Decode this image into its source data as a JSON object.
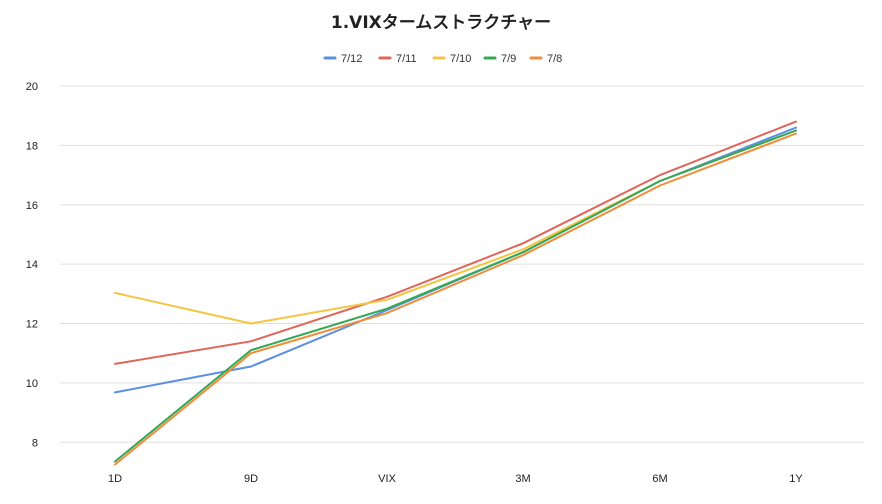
{
  "chart_data": {
    "type": "line",
    "title": "1.VIXタームストラクチャー",
    "xlabel": "",
    "ylabel": "",
    "categories": [
      "1D",
      "9D",
      "VIX",
      "3M",
      "6M",
      "1Y"
    ],
    "ylim": [
      7.2,
      20
    ],
    "yticks": [
      8,
      10,
      12,
      14,
      16,
      18,
      20
    ],
    "grid": true,
    "legend_position": "top",
    "series": [
      {
        "name": "7/12",
        "color": "#5b8fe6",
        "values": [
          9.68,
          10.55,
          12.45,
          14.4,
          16.8,
          18.6
        ]
      },
      {
        "name": "7/11",
        "color": "#e0665a",
        "values": [
          10.64,
          11.4,
          12.9,
          14.7,
          17.0,
          18.8
        ]
      },
      {
        "name": "7/10",
        "color": "#f4c542",
        "values": [
          13.03,
          12.0,
          12.8,
          14.5,
          16.8,
          18.5
        ]
      },
      {
        "name": "7/9",
        "color": "#34a853",
        "values": [
          7.35,
          11.1,
          12.5,
          14.4,
          16.8,
          18.5
        ]
      },
      {
        "name": "7/8",
        "color": "#f08c3a",
        "values": [
          7.25,
          11.0,
          12.35,
          14.3,
          16.65,
          18.4
        ]
      }
    ]
  }
}
